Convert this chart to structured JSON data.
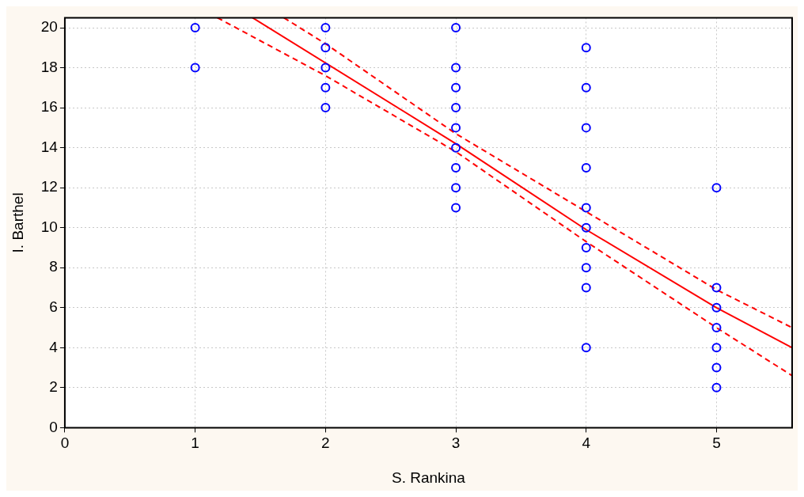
{
  "chart_data": {
    "type": "scatter",
    "xlabel": "S. Rankina",
    "ylabel": "I. Barthel",
    "xlim": [
      0,
      5.58
    ],
    "ylim": [
      0,
      20.5
    ],
    "xticks": [
      0,
      1,
      2,
      3,
      4,
      5
    ],
    "yticks": [
      0,
      2,
      4,
      6,
      8,
      10,
      12,
      14,
      16,
      18,
      20
    ],
    "grid": true,
    "legend": false,
    "series": [
      {
        "type": "scatter",
        "color": "#0000ff",
        "marker": "circle",
        "x": [
          1,
          1,
          2,
          2,
          2,
          2,
          2,
          3,
          3,
          3,
          3,
          3,
          3,
          3,
          3,
          3,
          4,
          4,
          4,
          4,
          4,
          4,
          4,
          4,
          4,
          4,
          5,
          5,
          5,
          5,
          5,
          5,
          5
        ],
        "values": [
          20,
          18,
          20,
          19,
          18,
          17,
          16,
          20,
          18,
          17,
          16,
          15,
          14,
          13,
          12,
          11,
          19,
          17,
          15,
          13,
          11,
          10,
          9,
          8,
          7,
          4,
          12,
          7,
          6,
          5,
          4,
          3,
          2
        ]
      },
      {
        "type": "line",
        "color": "#ff0000",
        "line_style": "solid",
        "marker": "none",
        "x": [
          1.44,
          3,
          4,
          5,
          5.58
        ],
        "values": [
          20.5,
          14.2,
          9.9,
          6.0,
          4.0
        ]
      },
      {
        "type": "line",
        "color": "#ff0000",
        "line_style": "dashed",
        "marker": "none",
        "x": [
          1.68,
          2,
          3,
          4,
          5,
          5.58
        ],
        "values": [
          20.5,
          19.2,
          14.7,
          10.8,
          6.9,
          5.0
        ]
      },
      {
        "type": "line",
        "color": "#ff0000",
        "line_style": "dashed",
        "marker": "none",
        "x": [
          1.17,
          2,
          3,
          4,
          5,
          5.58
        ],
        "values": [
          20.5,
          17.6,
          13.8,
          9.3,
          5.0,
          2.6
        ]
      }
    ]
  }
}
